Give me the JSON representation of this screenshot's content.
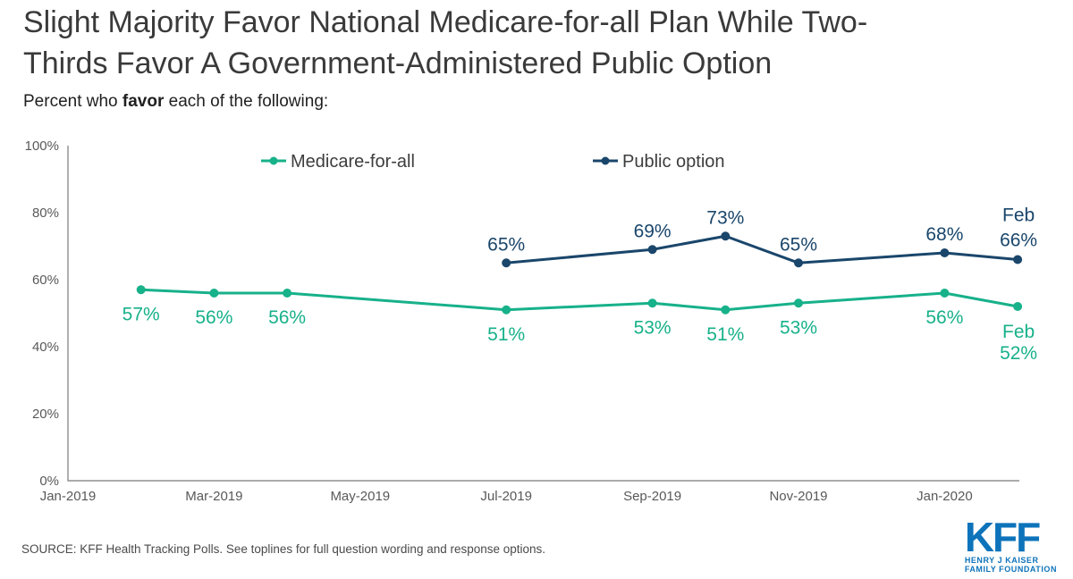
{
  "header": {
    "title_lines": [
      "Slight Majority Favor National Medicare-for-all Plan While Two-",
      "Thirds Favor A Government-Administered Public Option"
    ],
    "subtitle": {
      "prefix": "Percent who ",
      "bold": "favor",
      "suffix": " each of the following:"
    }
  },
  "chart_data": {
    "type": "line",
    "title": "Slight Majority Favor National Medicare-for-all Plan While Two-Thirds Favor A Government-Administered Public Option",
    "subtitle": "Percent who favor each of the following:",
    "legend_position": "top",
    "background": "#ffffff",
    "gridlines": false,
    "axis_color": "#8f8f8f",
    "tick_label_color": "#595959",
    "x_axis": {
      "tick_labels": [
        "Jan-2019",
        "Mar-2019",
        "May-2019",
        "Jul-2019",
        "Sep-2019",
        "Nov-2019",
        "Jan-2020"
      ]
    },
    "y_axis": {
      "tick_labels": [
        "0%",
        "20%",
        "40%",
        "60%",
        "80%",
        "100%"
      ],
      "min": 0,
      "max": 100
    },
    "series": [
      {
        "name": "Medicare-for-all",
        "color": "#17b18a",
        "label_position": "below",
        "points": [
          {
            "x": "Feb-2019",
            "y": 57,
            "label": "57%"
          },
          {
            "x": "Mar-2019",
            "y": 56,
            "label": "56%"
          },
          {
            "x": "Apr-2019",
            "y": 56,
            "label": "56%"
          },
          {
            "x": "Jul-2019",
            "y": 51,
            "label": "51%"
          },
          {
            "x": "Sep-2019",
            "y": 53,
            "label": "53%"
          },
          {
            "x": "Oct-2019",
            "y": 51,
            "label": "51%"
          },
          {
            "x": "Nov-2019",
            "y": 53,
            "label": "53%"
          },
          {
            "x": "Jan-2020",
            "y": 56,
            "label": "56%"
          },
          {
            "x": "Feb-2020",
            "y": 52,
            "label": "52%",
            "label_prefix": "Feb"
          }
        ]
      },
      {
        "name": "Public option",
        "color": "#1a466b",
        "label_position": "above",
        "points": [
          {
            "x": "Jul-2019",
            "y": 65,
            "label": "65%"
          },
          {
            "x": "Sep-2019",
            "y": 69,
            "label": "69%"
          },
          {
            "x": "Oct-2019",
            "y": 73,
            "label": "73%"
          },
          {
            "x": "Nov-2019",
            "y": 65,
            "label": "65%"
          },
          {
            "x": "Jan-2020",
            "y": 68,
            "label": "68%"
          },
          {
            "x": "Feb-2020",
            "y": 66,
            "label": "66%",
            "label_prefix": "Feb"
          }
        ]
      }
    ]
  },
  "footer": {
    "source": "SOURCE: KFF Health Tracking Polls. See toplines for full question wording and response options.",
    "logo": {
      "acronym": "KFF",
      "line1": "HENRY J KAISER",
      "line2": "FAMILY FOUNDATION",
      "color": "#0d73ba"
    }
  }
}
